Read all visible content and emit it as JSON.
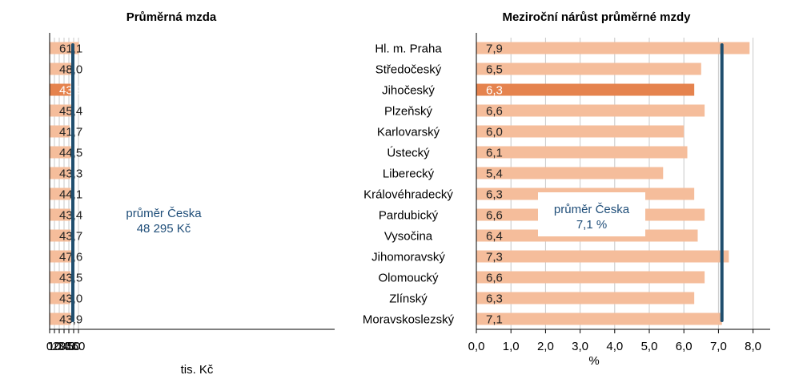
{
  "colors": {
    "bar": "#f5bd9b",
    "highlight": "#e5834e",
    "average_line": "#1f4e6e",
    "grid": "#c8c8c8",
    "annotation_text": "#1f4e79"
  },
  "chart_data": [
    {
      "type": "bar",
      "orientation": "horizontal",
      "title": "Průměrná mzda",
      "xlabel": "tis. Kč",
      "xlim": [
        0,
        65
      ],
      "xticks": [
        "0",
        "10",
        "20",
        "30",
        "40",
        "50",
        "60"
      ],
      "xtick_values": [
        0,
        10,
        20,
        30,
        40,
        50,
        60
      ],
      "categories": [
        "Hl. m. Praha",
        "Středočeský",
        "Jihočeský",
        "Plzeňský",
        "Karlovarský",
        "Ústecký",
        "Liberecký",
        "Královéhradecký",
        "Pardubický",
        "Vysočina",
        "Jihomoravský",
        "Olomoucký",
        "Zlínský",
        "Moravskoslezský"
      ],
      "values": [
        61.1,
        48.0,
        43.9,
        45.4,
        41.7,
        44.5,
        43.3,
        44.1,
        43.4,
        43.7,
        47.6,
        43.5,
        43.0,
        43.9
      ],
      "labels": [
        "61,1",
        "48,0",
        "43,9",
        "45,4",
        "41,7",
        "44,5",
        "43,3",
        "44,1",
        "43,4",
        "43,7",
        "47,6",
        "43,5",
        "43,0",
        "43,9"
      ],
      "highlight_index": 2,
      "average": 48.295,
      "annotation": [
        "průměr Česka",
        "48 295 Kč"
      ],
      "grid": true
    },
    {
      "type": "bar",
      "orientation": "horizontal",
      "title": "Meziroční nárůst průměrné mzdy",
      "xlabel": "%",
      "xlim": [
        0,
        8.5
      ],
      "xticks": [
        "0,0",
        "1,0",
        "2,0",
        "3,0",
        "4,0",
        "5,0",
        "6,0",
        "7,0",
        "8,0"
      ],
      "xtick_values": [
        0,
        1,
        2,
        3,
        4,
        5,
        6,
        7,
        8
      ],
      "categories": [
        "Hl. m. Praha",
        "Středočeský",
        "Jihočeský",
        "Plzeňský",
        "Karlovarský",
        "Ústecký",
        "Liberecký",
        "Královéhradecký",
        "Pardubický",
        "Vysočina",
        "Jihomoravský",
        "Olomoucký",
        "Zlínský",
        "Moravskoslezský"
      ],
      "values": [
        7.9,
        6.5,
        6.3,
        6.6,
        6.0,
        6.1,
        5.4,
        6.3,
        6.6,
        6.4,
        7.3,
        6.6,
        6.3,
        7.1
      ],
      "labels": [
        "7,9",
        "6,5",
        "6,3",
        "6,6",
        "6,0",
        "6,1",
        "5,4",
        "6,3",
        "6,6",
        "6,4",
        "7,3",
        "6,6",
        "6,3",
        "7,1"
      ],
      "highlight_index": 2,
      "average": 7.1,
      "annotation": [
        "průměr Česka",
        "7,1 %"
      ],
      "grid": true
    }
  ]
}
